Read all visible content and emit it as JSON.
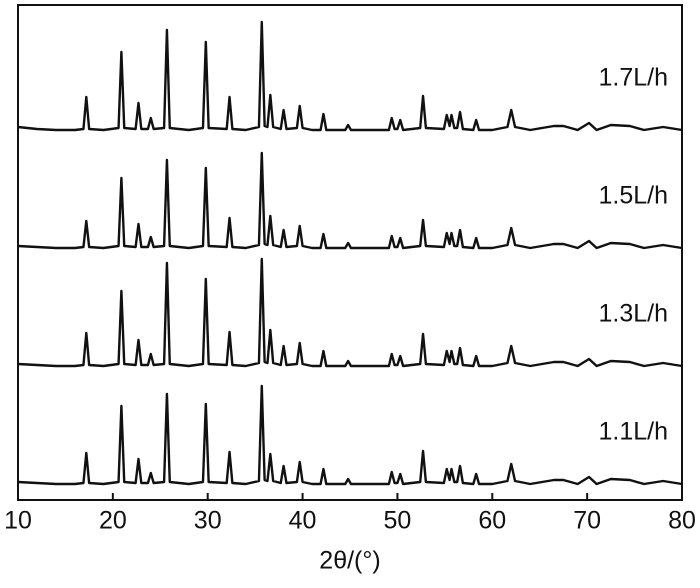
{
  "chart_data": {
    "type": "line",
    "x_label": "2θ/(°)",
    "xlim": [
      10,
      80
    ],
    "xticks": [
      10,
      20,
      30,
      40,
      50,
      60,
      70,
      80
    ],
    "ylim": [
      0,
      125
    ],
    "x": [
      10,
      12,
      14,
      16,
      16.9,
      17.2,
      17.5,
      19,
      20.6,
      20.9,
      21.2,
      22.4,
      22.7,
      23.0,
      23.7,
      24.0,
      24.3,
      25.4,
      25.7,
      26.0,
      28,
      29.5,
      29.8,
      30.1,
      32.0,
      32.3,
      32.6,
      34,
      35.4,
      35.7,
      36.0,
      36.3,
      36.6,
      36.9,
      37.7,
      38.0,
      38.3,
      39.4,
      39.7,
      40.0,
      41,
      41.9,
      42.2,
      42.5,
      44.5,
      44.8,
      45.1,
      47,
      49.1,
      49.4,
      49.7,
      50.0,
      50.3,
      50.6,
      52.4,
      52.7,
      53.0,
      54.9,
      55.2,
      55.5,
      55.7,
      56.0,
      56.3,
      56.6,
      56.9,
      58.0,
      58.3,
      58.6,
      60,
      61.6,
      62.0,
      62.4,
      64,
      66.5,
      67.5,
      69,
      70.2,
      71,
      72.5,
      74.5,
      76,
      78,
      80
    ],
    "series": [
      {
        "name": "1.7L/h",
        "color": "#111111",
        "values": [
          19,
          17,
          16,
          16,
          17,
          49,
          17,
          16,
          18,
          94,
          18,
          17,
          43,
          17,
          17,
          28,
          17,
          18,
          116,
          18,
          16,
          18,
          104,
          18,
          17,
          49,
          17,
          16,
          19,
          124,
          20,
          19,
          51,
          19,
          17,
          36,
          17,
          18,
          40,
          18,
          16,
          16,
          32,
          16,
          16,
          21,
          16,
          16,
          16,
          28,
          17,
          17,
          26,
          16,
          18,
          50,
          18,
          17,
          31,
          20,
          31,
          18,
          18,
          34,
          17,
          16,
          26,
          16,
          16,
          19,
          36,
          19,
          16,
          20,
          20,
          16,
          23,
          16,
          21,
          20,
          16,
          19,
          16
        ]
      },
      {
        "name": "1.5L/h",
        "color": "#111111",
        "values": [
          18,
          17,
          16,
          16,
          17,
          43,
          17,
          16,
          18,
          86,
          18,
          17,
          40,
          17,
          17,
          27,
          17,
          18,
          104,
          18,
          16,
          18,
          96,
          18,
          17,
          46,
          17,
          16,
          19,
          111,
          20,
          19,
          48,
          19,
          17,
          34,
          17,
          18,
          38,
          18,
          16,
          16,
          30,
          16,
          16,
          21,
          16,
          16,
          16,
          28,
          17,
          17,
          26,
          16,
          18,
          44,
          18,
          17,
          31,
          20,
          31,
          18,
          18,
          34,
          17,
          16,
          26,
          16,
          16,
          19,
          36,
          19,
          16,
          20,
          20,
          16,
          23,
          16,
          21,
          20,
          16,
          19,
          16
        ]
      },
      {
        "name": "1.3L/h",
        "color": "#111111",
        "values": [
          18,
          17,
          16,
          16,
          17,
          49,
          17,
          16,
          18,
          91,
          18,
          17,
          42,
          17,
          17,
          28,
          17,
          18,
          119,
          18,
          16,
          18,
          103,
          18,
          17,
          50,
          17,
          16,
          19,
          123,
          20,
          19,
          52,
          19,
          17,
          36,
          17,
          18,
          39,
          18,
          16,
          16,
          31,
          16,
          16,
          21,
          16,
          16,
          16,
          28,
          17,
          17,
          26,
          16,
          18,
          48,
          18,
          17,
          31,
          20,
          31,
          18,
          18,
          34,
          17,
          16,
          26,
          16,
          16,
          19,
          36,
          19,
          16,
          20,
          20,
          16,
          23,
          16,
          21,
          20,
          16,
          19,
          16
        ]
      },
      {
        "name": "1.1L/h",
        "color": "#111111",
        "values": [
          18,
          17,
          16,
          16,
          17,
          47,
          17,
          16,
          18,
          94,
          18,
          17,
          41,
          17,
          17,
          27,
          17,
          18,
          106,
          18,
          16,
          18,
          96,
          18,
          17,
          48,
          17,
          16,
          19,
          114,
          20,
          19,
          46,
          19,
          17,
          34,
          17,
          18,
          38,
          18,
          16,
          16,
          31,
          16,
          16,
          21,
          16,
          16,
          16,
          28,
          17,
          17,
          26,
          16,
          18,
          49,
          18,
          17,
          31,
          20,
          31,
          18,
          18,
          34,
          17,
          16,
          26,
          16,
          16,
          19,
          36,
          19,
          16,
          20,
          20,
          16,
          23,
          16,
          21,
          20,
          16,
          19,
          16
        ]
      }
    ]
  }
}
